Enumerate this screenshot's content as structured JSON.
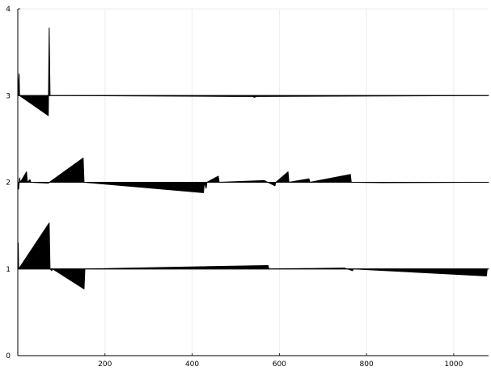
{
  "chart_data": {
    "type": "line",
    "title": "",
    "xlabel": "",
    "ylabel": "",
    "xlim": [
      0,
      1080
    ],
    "ylim": [
      0,
      4
    ],
    "grid": true,
    "legend": "none",
    "x_ticks": [
      {
        "value": 200,
        "label": "200"
      },
      {
        "value": 400,
        "label": "400"
      },
      {
        "value": 600,
        "label": "600"
      },
      {
        "value": 800,
        "label": "800"
      },
      {
        "value": 1000,
        "label": "1000"
      }
    ],
    "y_ticks": [
      {
        "value": 0,
        "label": "0"
      },
      {
        "value": 1,
        "label": "1"
      },
      {
        "value": 2,
        "label": "2"
      },
      {
        "value": 3,
        "label": "3"
      },
      {
        "value": 4,
        "label": "4"
      }
    ],
    "series": [
      {
        "baseline": 3,
        "points": [
          [
            0,
            0
          ],
          [
            3,
            0.25
          ],
          [
            4,
            0
          ],
          [
            70,
            -0.23
          ],
          [
            72,
            0.78
          ],
          [
            74,
            0
          ],
          [
            495,
            -0.01
          ],
          [
            538,
            -0.01
          ],
          [
            543,
            -0.02
          ],
          [
            548,
            -0.01
          ],
          [
            1080,
            0
          ]
        ]
      },
      {
        "baseline": 2,
        "points": [
          [
            0,
            -0.05
          ],
          [
            2,
            -0.08
          ],
          [
            4,
            0.05
          ],
          [
            6,
            0
          ],
          [
            20,
            0.12
          ],
          [
            22,
            0
          ],
          [
            28,
            0.03
          ],
          [
            30,
            0
          ],
          [
            70,
            -0.01
          ],
          [
            150,
            0.28
          ],
          [
            152,
            0
          ],
          [
            426,
            -0.12
          ],
          [
            428,
            0
          ],
          [
            432,
            -0.07
          ],
          [
            434,
            0
          ],
          [
            460,
            0.07
          ],
          [
            462,
            0
          ],
          [
            565,
            0.02
          ],
          [
            590,
            -0.04
          ],
          [
            592,
            0
          ],
          [
            620,
            0.12
          ],
          [
            622,
            0
          ],
          [
            668,
            0.04
          ],
          [
            670,
            0
          ],
          [
            763,
            0.09
          ],
          [
            765,
            0
          ],
          [
            835,
            -0.005
          ],
          [
            1080,
            0
          ]
        ]
      },
      {
        "baseline": 1,
        "points": [
          [
            0,
            0
          ],
          [
            1,
            0.3
          ],
          [
            2,
            0
          ],
          [
            72,
            0.53
          ],
          [
            74,
            0
          ],
          [
            78,
            -0.02
          ],
          [
            80,
            0
          ],
          [
            152,
            -0.23
          ],
          [
            154,
            0
          ],
          [
            574,
            0.04
          ],
          [
            576,
            0
          ],
          [
            750,
            0.01
          ],
          [
            768,
            -0.02
          ],
          [
            770,
            0
          ],
          [
            1075,
            -0.08
          ],
          [
            1077,
            0
          ],
          [
            1080,
            0
          ]
        ]
      }
    ]
  }
}
